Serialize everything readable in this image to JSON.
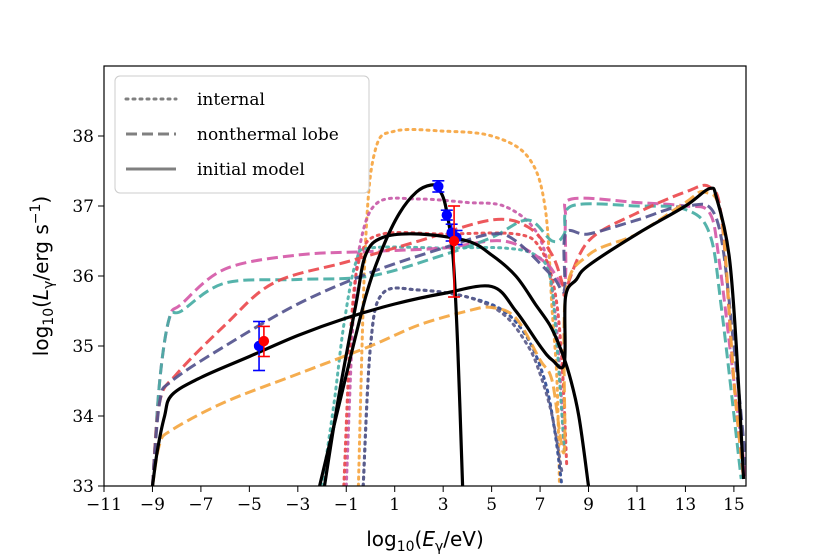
{
  "chart_data": {
    "type": "line",
    "title": "",
    "xlabel": "log10(E_γ/eV)",
    "ylabel": "log10(L_γ/erg s^-1)",
    "xlabel_parts": {
      "pre": "log",
      "sub": "10",
      "mid": "(",
      "var": "E",
      "varsub": "γ",
      "post": "/eV)"
    },
    "ylabel_parts": {
      "pre": "log",
      "sub": "10",
      "mid": "(",
      "var": "L",
      "varsub": "γ",
      "post": "/erg s",
      "sup": "−1",
      "end": ")"
    },
    "xlim": [
      -11,
      15.5
    ],
    "ylim": [
      33,
      39
    ],
    "xticks": [
      -11,
      -9,
      -7,
      -5,
      -3,
      -1,
      1,
      3,
      5,
      7,
      9,
      11,
      13,
      15
    ],
    "xtick_labels": [
      "−11",
      "−9",
      "−7",
      "−5",
      "−3",
      "−1",
      "1",
      "3",
      "5",
      "7",
      "9",
      "11",
      "13",
      "15"
    ],
    "yticks": [
      33,
      34,
      35,
      36,
      37,
      38
    ],
    "ytick_labels": [
      "33",
      "34",
      "35",
      "36",
      "37",
      "38"
    ],
    "legend": {
      "placement": "top-left",
      "entries": [
        {
          "label": "internal",
          "style": "dotted",
          "color": "#808080"
        },
        {
          "label": "nonthermal lobe",
          "style": "dashed",
          "color": "#808080"
        },
        {
          "label": "initial model",
          "style": "solid",
          "color": "#808080"
        }
      ]
    },
    "series": [
      {
        "name": "orange dotted",
        "style": "dotted",
        "color": "#F6A540",
        "width": 3,
        "x": [
          -0.5,
          -0.2,
          0.2,
          1,
          3,
          5,
          6.5,
          7.2,
          7.5,
          7.7,
          7.8
        ],
        "y": [
          33,
          36.5,
          37.8,
          38.07,
          38.07,
          38.0,
          37.7,
          37.0,
          35.5,
          34.5,
          33
        ]
      },
      {
        "name": "magenta dotted",
        "style": "dotted",
        "color": "#C85AA8",
        "width": 3,
        "x": [
          -1.0,
          -0.7,
          -0.4,
          0.3,
          2,
          4,
          5.5,
          6.7,
          7.3,
          7.7,
          8.0
        ],
        "y": [
          33,
          35.5,
          36.5,
          37.05,
          37.1,
          37.05,
          37.0,
          36.7,
          36.2,
          35.2,
          33.5
        ]
      },
      {
        "name": "red dotted",
        "style": "dotted",
        "color": "#E8484C",
        "width": 3,
        "x": [
          -1.1,
          -0.8,
          -0.4,
          0.5,
          3,
          6,
          7,
          7.6,
          7.9,
          8.1
        ],
        "y": [
          33,
          35.3,
          36.3,
          36.6,
          36.6,
          36.6,
          36.4,
          35.8,
          34.8,
          33.3
        ]
      },
      {
        "name": "teal dotted",
        "style": "dotted",
        "color": "#4BB1A8",
        "width": 3,
        "x": [
          -2.0,
          -1.5,
          -1.1,
          -0.6,
          0,
          3,
          5.5,
          6.8,
          7.4,
          7.7,
          8.0
        ],
        "y": [
          33,
          34.2,
          35.3,
          36.2,
          36.4,
          36.4,
          36.4,
          36.3,
          36.0,
          35.0,
          33.5
        ]
      },
      {
        "name": "navy dotted",
        "style": "dotted",
        "color": "#2C4A96",
        "width": 3,
        "x": [
          -0.3,
          0,
          0.5,
          2,
          4,
          5.5,
          6.5,
          7.2,
          7.6,
          7.9
        ],
        "y": [
          33,
          35.0,
          35.75,
          35.8,
          35.7,
          35.5,
          35.1,
          34.5,
          33.8,
          33.0
        ]
      },
      {
        "name": "slate dotted",
        "style": "dotted",
        "color": "#5C5C8A",
        "width": 3,
        "x": [
          -0.3,
          0,
          0.5,
          2,
          4,
          5.5,
          6.5,
          7.0,
          7.5,
          7.9
        ],
        "y": [
          33,
          35.0,
          35.75,
          35.8,
          35.7,
          35.45,
          35.0,
          34.6,
          34.0,
          33.2
        ]
      },
      {
        "name": "magenta dashed",
        "style": "dashed",
        "color": "#D55AA8",
        "width": 3,
        "x": [
          -9.0,
          -8.7,
          -8.3,
          -7.8,
          -6,
          -3,
          0,
          3,
          5.5,
          7.2,
          8.0,
          8.05,
          8.3,
          11,
          13,
          14,
          14.4,
          15.0,
          15.5
        ],
        "y": [
          33,
          34.5,
          35.4,
          35.6,
          36.1,
          36.3,
          36.35,
          36.4,
          36.5,
          36.2,
          35.9,
          36.8,
          37.1,
          37.05,
          37.0,
          36.9,
          36.2,
          34.5,
          33.1
        ]
      },
      {
        "name": "teal dashed",
        "style": "dashed",
        "color": "#47ADA4",
        "width": 3,
        "x": [
          -9.0,
          -8.7,
          -8.3,
          -7.8,
          -6,
          -3,
          0,
          3,
          5,
          6.5,
          7.5,
          8.0,
          8.3,
          11,
          13,
          14,
          14.5,
          15.3
        ],
        "y": [
          33,
          34.5,
          35.4,
          35.5,
          35.9,
          35.95,
          36.0,
          36.3,
          36.55,
          36.8,
          36.5,
          36.6,
          37.0,
          37.0,
          36.95,
          36.6,
          35.5,
          33.1
        ]
      },
      {
        "name": "red dashed",
        "style": "dashed",
        "color": "#EB4A4E",
        "width": 3,
        "x": [
          -9.0,
          -8.7,
          -8.0,
          -6,
          -4,
          -1,
          2,
          5,
          6.5,
          7.5,
          8.0,
          8.05,
          9,
          11,
          13,
          14,
          14.5,
          15.0,
          15.4
        ],
        "y": [
          33,
          34.2,
          34.6,
          35.3,
          35.9,
          36.2,
          36.5,
          36.8,
          36.7,
          36.3,
          35.8,
          35.8,
          36.5,
          36.9,
          37.2,
          37.27,
          36.8,
          34.5,
          33.1
        ]
      },
      {
        "name": "indigo dashed",
        "style": "dashed",
        "color": "#54548E",
        "width": 3,
        "x": [
          -9.0,
          -8.7,
          -8.2,
          -6,
          -3,
          0,
          3,
          5,
          6,
          7.5,
          8.0,
          8.05,
          9,
          11,
          13,
          14.3,
          15.0,
          15.5
        ],
        "y": [
          33,
          34.2,
          34.5,
          35.0,
          35.6,
          36.05,
          36.4,
          36.6,
          36.5,
          36.0,
          35.8,
          36.6,
          36.6,
          36.8,
          37.0,
          36.8,
          35.0,
          33.3
        ]
      },
      {
        "name": "orange dashed",
        "style": "dashed",
        "color": "#F4A640",
        "width": 3,
        "x": [
          -9.0,
          -8.7,
          -8.2,
          -6,
          -3,
          0,
          2,
          4,
          5,
          6,
          7,
          7.5,
          8.0,
          8.05,
          9,
          11,
          13,
          13.8,
          14.5,
          15.0,
          15.4
        ],
        "y": [
          33,
          33.6,
          33.8,
          34.2,
          34.6,
          35.0,
          35.3,
          35.5,
          35.55,
          35.4,
          34.8,
          34.5,
          33.5,
          35.7,
          36.3,
          36.6,
          37.05,
          37.2,
          36.8,
          34.5,
          33.1
        ]
      },
      {
        "name": "black solid",
        "style": "solid",
        "color": "#000000",
        "width": 3.2,
        "x": [
          -9.0,
          -8.8,
          -8.5,
          -8.2,
          -7,
          -5,
          -3,
          -1,
          1,
          3,
          5,
          6,
          7,
          7.5,
          8.0,
          8.05,
          8.5,
          9,
          11,
          13,
          14,
          14.3,
          14.8,
          15.1,
          15.4
        ],
        "y": [
          33,
          33.5,
          34.0,
          34.3,
          34.55,
          34.85,
          35.15,
          35.4,
          35.6,
          35.75,
          35.85,
          35.5,
          35.0,
          34.8,
          34.75,
          35.7,
          35.95,
          36.15,
          36.6,
          37.0,
          37.25,
          37.1,
          36.3,
          35.0,
          33.1
        ]
      },
      {
        "name": "black solid thermal",
        "style": "solid",
        "color": "#000000",
        "width": 3.2,
        "x": [
          -1.9,
          -1.3,
          -0.6,
          -0.2,
          0.5,
          2,
          4,
          5,
          6,
          6.8,
          7.4,
          7.8,
          8.2,
          8.6,
          9.0
        ],
        "y": [
          33,
          34.3,
          35.6,
          36.3,
          36.55,
          36.6,
          36.5,
          36.3,
          36.0,
          35.6,
          35.3,
          35.0,
          34.6,
          34.0,
          33.0
        ]
      },
      {
        "name": "black solid bump",
        "style": "solid",
        "color": "#000000",
        "width": 3.2,
        "x": [
          -2.1,
          -1.2,
          -0.2,
          0.5,
          1.2,
          1.9,
          2.5,
          2.8,
          3.1,
          3.4,
          3.6,
          3.8
        ],
        "y": [
          33,
          34.3,
          35.7,
          36.4,
          36.9,
          37.2,
          37.3,
          37.25,
          37.0,
          36.3,
          35.0,
          33.0
        ]
      }
    ],
    "markers": [
      {
        "color": "#0000FF",
        "points": [
          {
            "x": -4.6,
            "y": 35.0,
            "ylo": 34.65,
            "yhi": 35.35
          },
          {
            "x": 2.8,
            "y": 37.28,
            "ylo": 37.2,
            "yhi": 37.36
          },
          {
            "x": 3.15,
            "y": 36.87,
            "ylo": 36.8,
            "yhi": 36.94
          },
          {
            "x": 3.35,
            "y": 36.62,
            "ylo": 36.5,
            "yhi": 36.74
          },
          {
            "x": 3.55,
            "y": 36.55,
            "ylo": 36.45,
            "yhi": 36.65
          }
        ]
      },
      {
        "color": "#FF0000",
        "points": [
          {
            "x": -4.4,
            "y": 35.07,
            "ylo": 34.85,
            "yhi": 35.28
          },
          {
            "x": 3.45,
            "y": 36.5,
            "ylo": 35.7,
            "yhi": 37.0
          }
        ]
      }
    ]
  }
}
